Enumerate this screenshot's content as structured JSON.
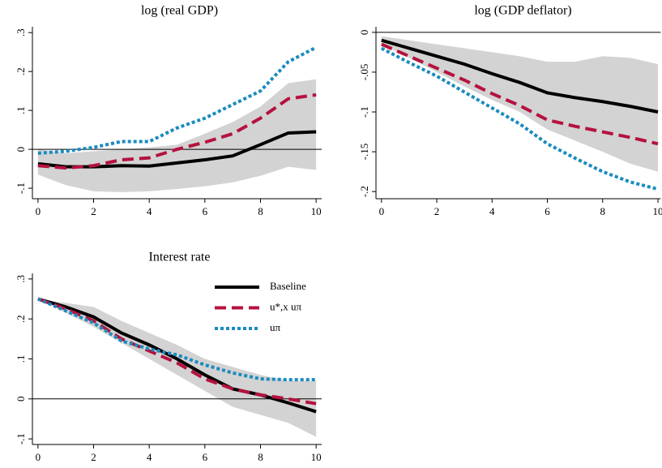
{
  "chart_data": [
    {
      "type": "line",
      "title": "log (real GDP)",
      "x": [
        0,
        1,
        2,
        3,
        4,
        5,
        6,
        7,
        8,
        9,
        10
      ],
      "xlim": [
        -0.2,
        10.2
      ],
      "xticks": [
        0,
        2,
        4,
        6,
        8,
        10
      ],
      "ylim": [
        -0.127,
        0.315
      ],
      "yticks": [
        {
          "value": 0.3,
          "label": ".3"
        },
        {
          "value": 0.2,
          "label": ".2"
        },
        {
          "value": 0.1,
          "label": ".1"
        },
        0,
        {
          "value": -0.1,
          "label": "-.1"
        }
      ],
      "hline": 0,
      "band": {
        "color": "#d3d3d3",
        "lower": [
          -0.065,
          -0.092,
          -0.108,
          -0.11,
          -0.108,
          -0.102,
          -0.095,
          -0.085,
          -0.068,
          -0.045,
          -0.053
        ],
        "upper": [
          0.0,
          -0.01,
          -0.005,
          0.0,
          0.005,
          0.012,
          0.04,
          0.07,
          0.11,
          0.17,
          0.18
        ]
      },
      "series": [
        {
          "name": "Baseline",
          "color": "#000000",
          "dash": "solid",
          "values": [
            -0.037,
            -0.045,
            -0.045,
            -0.042,
            -0.043,
            -0.035,
            -0.027,
            -0.017,
            0.012,
            0.042,
            0.045
          ]
        },
        {
          "name": "u*,x uπ",
          "color": "#b5123f",
          "dash": "dashed",
          "values": [
            -0.042,
            -0.048,
            -0.042,
            -0.027,
            -0.022,
            0.0,
            0.018,
            0.04,
            0.08,
            0.13,
            0.14
          ]
        },
        {
          "name": "uπ",
          "color": "#1a8bbf",
          "dash": "dotted",
          "values": [
            -0.01,
            -0.005,
            0.005,
            0.02,
            0.02,
            0.055,
            0.08,
            0.115,
            0.15,
            0.225,
            0.262
          ]
        }
      ]
    },
    {
      "type": "line",
      "title": "log (GDP deflator)",
      "x": [
        0,
        1,
        2,
        3,
        4,
        5,
        6,
        7,
        8,
        9,
        10
      ],
      "xlim": [
        -0.2,
        10.1
      ],
      "xticks": [
        0,
        2,
        4,
        6,
        8,
        10
      ],
      "ylim": [
        -0.209,
        0.007
      ],
      "yticks": [
        0,
        {
          "value": -0.05,
          "label": "-.05"
        },
        {
          "value": -0.1,
          "label": "-.1"
        },
        {
          "value": -0.15,
          "label": "-.15"
        },
        {
          "value": -0.2,
          "label": "-.2"
        }
      ],
      "hline": 0,
      "band": {
        "color": "#d3d3d3",
        "lower": [
          -0.015,
          -0.032,
          -0.05,
          -0.068,
          -0.085,
          -0.1,
          -0.122,
          -0.136,
          -0.15,
          -0.165,
          -0.175
        ],
        "upper": [
          -0.005,
          -0.01,
          -0.015,
          -0.02,
          -0.025,
          -0.03,
          -0.037,
          -0.037,
          -0.03,
          -0.032,
          -0.04
        ]
      },
      "series": [
        {
          "name": "Baseline",
          "color": "#000000",
          "dash": "solid",
          "values": [
            -0.01,
            -0.02,
            -0.03,
            -0.04,
            -0.052,
            -0.063,
            -0.076,
            -0.082,
            -0.087,
            -0.093,
            -0.1
          ]
        },
        {
          "name": "u*,x uπ",
          "color": "#b5123f",
          "dash": "dashed",
          "values": [
            -0.015,
            -0.03,
            -0.045,
            -0.06,
            -0.077,
            -0.092,
            -0.11,
            -0.118,
            -0.125,
            -0.132,
            -0.14
          ]
        },
        {
          "name": "uπ",
          "color": "#1a8bbf",
          "dash": "dotted",
          "values": [
            -0.02,
            -0.038,
            -0.055,
            -0.075,
            -0.095,
            -0.115,
            -0.14,
            -0.158,
            -0.175,
            -0.188,
            -0.197
          ]
        }
      ]
    },
    {
      "type": "line",
      "title": "Interest rate",
      "x": [
        0,
        1,
        2,
        3,
        4,
        5,
        6,
        7,
        8,
        9,
        10
      ],
      "xlim": [
        -0.2,
        10.2
      ],
      "xticks": [
        0,
        2,
        4,
        6,
        8,
        10
      ],
      "ylim": [
        -0.114,
        0.314
      ],
      "yticks": [
        {
          "value": 0.3,
          "label": ".3"
        },
        {
          "value": 0.2,
          "label": ".2"
        },
        {
          "value": 0.1,
          "label": ".1"
        },
        0,
        {
          "value": -0.1,
          "label": "-.1"
        }
      ],
      "hline": 0,
      "legend": "top-right",
      "band": {
        "color": "#d3d3d3",
        "lower": [
          0.25,
          0.215,
          0.18,
          0.14,
          0.1,
          0.06,
          0.02,
          -0.02,
          -0.04,
          -0.06,
          -0.095
        ],
        "upper": [
          0.25,
          0.24,
          0.23,
          0.195,
          0.165,
          0.135,
          0.1,
          0.08,
          0.06,
          0.045,
          0.045
        ]
      },
      "series": [
        {
          "name": "Baseline",
          "color": "#000000",
          "dash": "solid",
          "values": [
            0.25,
            0.23,
            0.205,
            0.165,
            0.135,
            0.1,
            0.06,
            0.025,
            0.01,
            -0.01,
            -0.032
          ]
        },
        {
          "name": "u*,x uπ",
          "color": "#b5123f",
          "dash": "dashed",
          "values": [
            0.25,
            0.225,
            0.195,
            0.15,
            0.12,
            0.09,
            0.05,
            0.025,
            0.01,
            0.0,
            -0.012
          ]
        },
        {
          "name": "uπ",
          "color": "#1a8bbf",
          "dash": "dotted",
          "values": [
            0.25,
            0.22,
            0.19,
            0.145,
            0.125,
            0.11,
            0.085,
            0.065,
            0.05,
            0.048,
            0.048
          ]
        }
      ]
    }
  ]
}
